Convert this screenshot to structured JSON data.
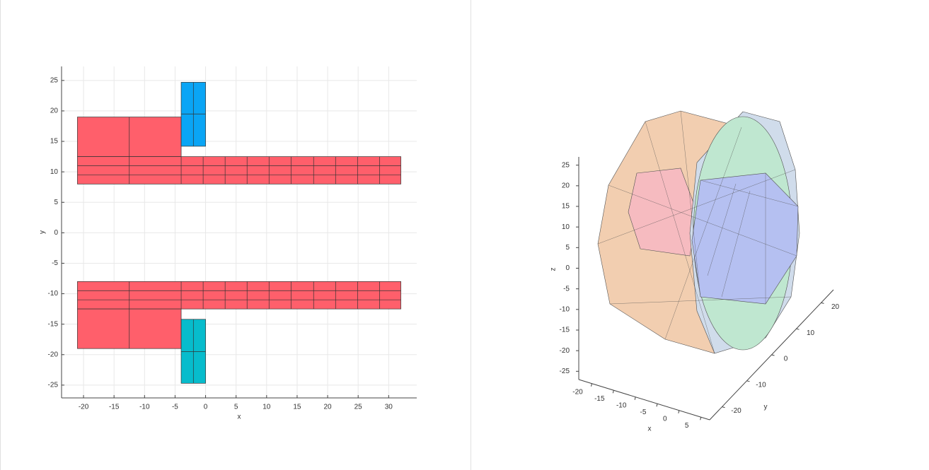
{
  "chart_data": [
    {
      "type": "patch",
      "xlabel": "x",
      "ylabel": "y",
      "xlim": [
        -23.6,
        34.6
      ],
      "ylim": [
        -27.1,
        27.3
      ],
      "xticks": [
        -20,
        -15,
        -10,
        -5,
        0,
        5,
        10,
        15,
        20,
        25,
        30
      ],
      "yticks": [
        -25,
        -20,
        -15,
        -10,
        -5,
        0,
        5,
        10,
        15,
        20,
        25
      ],
      "grid": true,
      "patches": [
        {
          "color": "#ff5f6b",
          "x": [
            -21,
            -4
          ],
          "y": [
            12.5,
            19
          ],
          "xdiv": [
            -12.5
          ],
          "ydiv": []
        },
        {
          "color": "#ff5f6b",
          "x": [
            -21,
            32
          ],
          "y": [
            8,
            12.5
          ],
          "xdiv": [
            -12.5,
            -4,
            -0.4,
            3.2,
            6.8,
            10.4,
            14,
            17.7,
            21.3,
            24.9,
            28.5
          ],
          "ydiv": [
            9.5,
            11
          ]
        },
        {
          "color": "#0aa5f5",
          "x": [
            -4,
            0
          ],
          "y": [
            14.2,
            24.7
          ],
          "xdiv": [
            -2
          ],
          "ydiv": [
            19.5
          ]
        },
        {
          "color": "#ff5f6b",
          "x": [
            -21,
            32
          ],
          "y": [
            -12.5,
            -8
          ],
          "xdiv": [
            -12.5,
            -4,
            -0.4,
            3.2,
            6.8,
            10.4,
            14,
            17.7,
            21.3,
            24.9,
            28.5
          ],
          "ydiv": [
            -11,
            -9.5
          ]
        },
        {
          "color": "#ff5f6b",
          "x": [
            -21,
            -4
          ],
          "y": [
            -19,
            -12.5
          ],
          "xdiv": [
            -12.5
          ],
          "ydiv": []
        },
        {
          "color": "#07bccc",
          "x": [
            -4,
            0
          ],
          "y": [
            -24.7,
            -14.2
          ],
          "xdiv": [
            -2
          ],
          "ydiv": [
            -19.5
          ]
        }
      ]
    },
    {
      "type": "mesh3d",
      "xlabel": "x",
      "ylabel": "y",
      "zlabel": "z",
      "xlim": [
        -23,
        7
      ],
      "ylim": [
        -25,
        25
      ],
      "zlim": [
        -27,
        27
      ],
      "xticks": [
        -20,
        -15,
        -10,
        -5,
        0,
        5
      ],
      "yticks": [
        -20,
        -10,
        0,
        10,
        20
      ],
      "zticks": [
        -25,
        -20,
        -15,
        -10,
        -5,
        0,
        5,
        10,
        15,
        20,
        25
      ]
    }
  ]
}
